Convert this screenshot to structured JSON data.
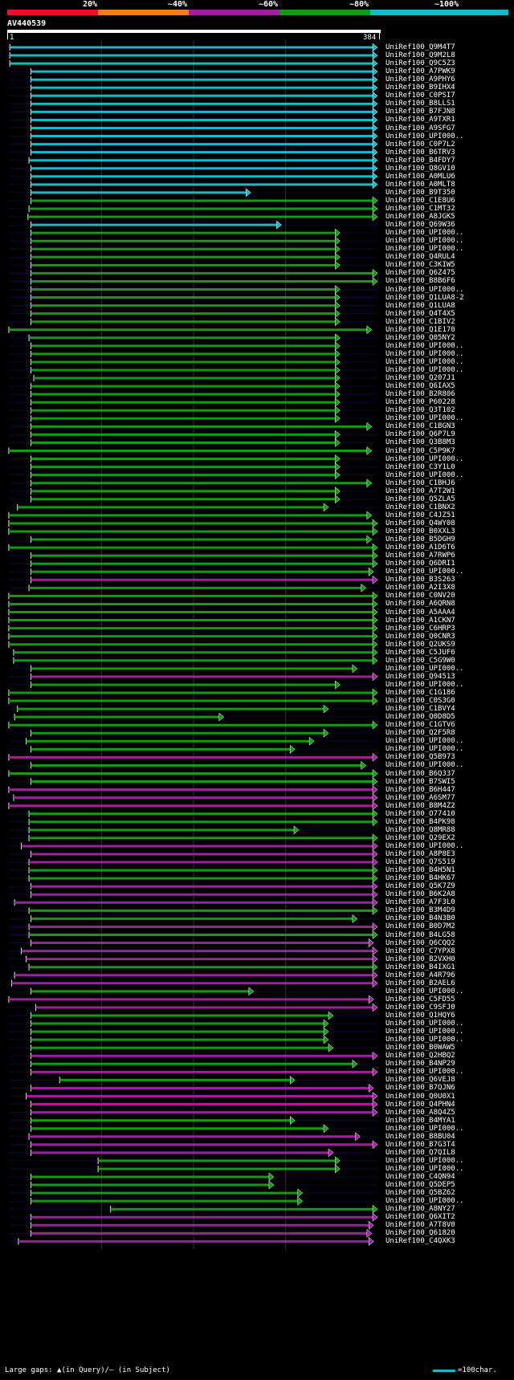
{
  "legend": {
    "labels": [
      "20%",
      "~40%",
      "~60%",
      "~80%",
      "~100%"
    ],
    "colors": [
      "#e8112d",
      "#f07d1e",
      "#a01f9c",
      "#119c11",
      "#19b8c8"
    ]
  },
  "query": {
    "title": "AV440539",
    "start": "1",
    "end": "384"
  },
  "footer": {
    "left": "Large gaps: ▲(in Query)/– (in Subject)",
    "right": "=100char."
  },
  "chart_data": {
    "type": "alignment",
    "query_length": 384,
    "color_key": {
      "cyan": "~100%",
      "green": "~80%",
      "magenta": "~60%",
      "orange": "~40%",
      "red": "20%"
    },
    "hits": [
      {
        "name": "UniRef100_Q9M4T7",
        "start": 1,
        "end": 384,
        "color": "cyan"
      },
      {
        "name": "UniRef100_Q9M2L8",
        "start": 1,
        "end": 384,
        "color": "cyan"
      },
      {
        "name": "UniRef100_Q9C5Z3",
        "start": 1,
        "end": 384,
        "color": "cyan"
      },
      {
        "name": "UniRef100_A7PWK9",
        "start": 23,
        "end": 384,
        "color": "cyan"
      },
      {
        "name": "UniRef100_A9PHY6",
        "start": 23,
        "end": 384,
        "color": "cyan"
      },
      {
        "name": "UniRef100_B9IHX4",
        "start": 23,
        "end": 384,
        "color": "cyan"
      },
      {
        "name": "UniRef100_C0PSI7",
        "start": 23,
        "end": 384,
        "color": "cyan"
      },
      {
        "name": "UniRef100_B8LLS1",
        "start": 23,
        "end": 384,
        "color": "cyan"
      },
      {
        "name": "UniRef100_B7FJN8",
        "start": 23,
        "end": 384,
        "color": "cyan"
      },
      {
        "name": "UniRef100_A9TXR1",
        "start": 23,
        "end": 384,
        "color": "cyan"
      },
      {
        "name": "UniRef100_A9SFG7",
        "start": 23,
        "end": 384,
        "color": "cyan"
      },
      {
        "name": "UniRef100_UPI000..",
        "start": 23,
        "end": 384,
        "color": "cyan"
      },
      {
        "name": "UniRef100_C0P7L2",
        "start": 23,
        "end": 384,
        "color": "cyan"
      },
      {
        "name": "UniRef100_B6TRV3",
        "start": 23,
        "end": 384,
        "color": "cyan"
      },
      {
        "name": "UniRef100_B4FDY7",
        "start": 21,
        "end": 384,
        "color": "cyan"
      },
      {
        "name": "UniRef100_Q8GV10",
        "start": 23,
        "end": 384,
        "color": "cyan"
      },
      {
        "name": "UniRef100_A0MLU6",
        "start": 23,
        "end": 384,
        "color": "cyan"
      },
      {
        "name": "UniRef100_A0MLT8",
        "start": 23,
        "end": 384,
        "color": "cyan"
      },
      {
        "name": "UniRef100_B9T350",
        "start": 23,
        "end": 252,
        "color": "cyan"
      },
      {
        "name": "UniRef100_C1E8U6",
        "start": 23,
        "end": 384,
        "color": "green"
      },
      {
        "name": "UniRef100_C1MT32",
        "start": 21,
        "end": 384,
        "color": "green"
      },
      {
        "name": "UniRef100_A8JGK5",
        "start": 20,
        "end": 384,
        "color": "green"
      },
      {
        "name": "UniRef100_Q69W36",
        "start": 23,
        "end": 284,
        "color": "cyan"
      },
      {
        "name": "UniRef100_UPI000..",
        "start": 23,
        "end": 345,
        "color": "green"
      },
      {
        "name": "UniRef100_UPI000..",
        "start": 23,
        "end": 345,
        "color": "green"
      },
      {
        "name": "UniRef100_UPI000..",
        "start": 23,
        "end": 345,
        "color": "green"
      },
      {
        "name": "UniRef100_Q4RUL4",
        "start": 23,
        "end": 345,
        "color": "green"
      },
      {
        "name": "UniRef100_C3KIW5",
        "start": 23,
        "end": 345,
        "color": "green"
      },
      {
        "name": "UniRef100_Q6Z475",
        "start": 23,
        "end": 384,
        "color": "green"
      },
      {
        "name": "UniRef100_B8B6F6",
        "start": 23,
        "end": 384,
        "color": "green"
      },
      {
        "name": "UniRef100_UPI000..",
        "start": 23,
        "end": 345,
        "color": "green"
      },
      {
        "name": "UniRef100_Q1LUA8-2",
        "start": 23,
        "end": 345,
        "color": "green"
      },
      {
        "name": "UniRef100_Q1LUA8",
        "start": 23,
        "end": 345,
        "color": "green"
      },
      {
        "name": "UniRef100_Q4T4X5",
        "start": 23,
        "end": 345,
        "color": "green"
      },
      {
        "name": "UniRef100_C1BIV2",
        "start": 23,
        "end": 345,
        "color": "green"
      },
      {
        "name": "UniRef100_Q1E170",
        "start": 0,
        "end": 378,
        "color": "green"
      },
      {
        "name": "UniRef100_Q05NY2",
        "start": 21,
        "end": 345,
        "color": "green"
      },
      {
        "name": "UniRef100_UPI000..",
        "start": 23,
        "end": 345,
        "color": "green"
      },
      {
        "name": "UniRef100_UPI000..",
        "start": 23,
        "end": 345,
        "color": "green"
      },
      {
        "name": "UniRef100_UPI000..",
        "start": 23,
        "end": 345,
        "color": "green"
      },
      {
        "name": "UniRef100_UPI000..",
        "start": 23,
        "end": 345,
        "color": "green"
      },
      {
        "name": "UniRef100_Q207J1",
        "start": 26,
        "end": 345,
        "color": "green"
      },
      {
        "name": "UniRef100_Q6IAX5",
        "start": 23,
        "end": 345,
        "color": "green"
      },
      {
        "name": "UniRef100_B2R806",
        "start": 23,
        "end": 345,
        "color": "green"
      },
      {
        "name": "UniRef100_P60228",
        "start": 23,
        "end": 345,
        "color": "green"
      },
      {
        "name": "UniRef100_Q3T102",
        "start": 23,
        "end": 345,
        "color": "green"
      },
      {
        "name": "UniRef100_UPI000..",
        "start": 23,
        "end": 345,
        "color": "green"
      },
      {
        "name": "UniRef100_C1BGN3",
        "start": 23,
        "end": 378,
        "color": "green"
      },
      {
        "name": "UniRef100_Q6P7L9",
        "start": 23,
        "end": 345,
        "color": "green"
      },
      {
        "name": "UniRef100_Q3B8M3",
        "start": 23,
        "end": 345,
        "color": "green"
      },
      {
        "name": "UniRef100_C5P9K7",
        "start": 0,
        "end": 378,
        "color": "green"
      },
      {
        "name": "UniRef100_UPI000..",
        "start": 23,
        "end": 345,
        "color": "green"
      },
      {
        "name": "UniRef100_C3Y1L0",
        "start": 23,
        "end": 345,
        "color": "green"
      },
      {
        "name": "UniRef100_UPI000..",
        "start": 23,
        "end": 345,
        "color": "green"
      },
      {
        "name": "UniRef100_C1BHJ6",
        "start": 23,
        "end": 378,
        "color": "green"
      },
      {
        "name": "UniRef100_A7T2W1",
        "start": 23,
        "end": 345,
        "color": "green"
      },
      {
        "name": "UniRef100_Q5ZLA5",
        "start": 23,
        "end": 345,
        "color": "green"
      },
      {
        "name": "UniRef100_C1BNX2",
        "start": 9,
        "end": 333,
        "color": "green"
      },
      {
        "name": "UniRef100_C4JZ51",
        "start": 0,
        "end": 378,
        "color": "green"
      },
      {
        "name": "UniRef100_Q4WY08",
        "start": 0,
        "end": 384,
        "color": "green"
      },
      {
        "name": "UniRef100_B0XXL3",
        "start": 0,
        "end": 384,
        "color": "green"
      },
      {
        "name": "UniRef100_B5DGH9",
        "start": 23,
        "end": 378,
        "color": "green"
      },
      {
        "name": "UniRef100_A1D6T6",
        "start": 0,
        "end": 384,
        "color": "green"
      },
      {
        "name": "UniRef100_A7RWP6",
        "start": 23,
        "end": 384,
        "color": "green"
      },
      {
        "name": "UniRef100_Q6DRI1",
        "start": 23,
        "end": 384,
        "color": "green"
      },
      {
        "name": "UniRef100_UPI000..",
        "start": 23,
        "end": 380,
        "color": "green"
      },
      {
        "name": "UniRef100_B3S263",
        "start": 23,
        "end": 384,
        "color": "magenta"
      },
      {
        "name": "UniRef100_A2I3X8",
        "start": 21,
        "end": 372,
        "color": "green"
      },
      {
        "name": "UniRef100_C0NV20",
        "start": 0,
        "end": 384,
        "color": "green"
      },
      {
        "name": "UniRef100_A6QRN8",
        "start": 0,
        "end": 384,
        "color": "green"
      },
      {
        "name": "UniRef100_A5AAA4",
        "start": 0,
        "end": 384,
        "color": "green"
      },
      {
        "name": "UniRef100_A1CKN7",
        "start": 0,
        "end": 384,
        "color": "green"
      },
      {
        "name": "UniRef100_C6HRP3",
        "start": 0,
        "end": 384,
        "color": "green"
      },
      {
        "name": "UniRef100_Q0CNR3",
        "start": 0,
        "end": 384,
        "color": "green"
      },
      {
        "name": "UniRef100_Q2UKS9",
        "start": 0,
        "end": 384,
        "color": "green"
      },
      {
        "name": "UniRef100_C5JUF6",
        "start": 5,
        "end": 384,
        "color": "green"
      },
      {
        "name": "UniRef100_C5G9W0",
        "start": 5,
        "end": 384,
        "color": "green"
      },
      {
        "name": "UniRef100_UPI000..",
        "start": 23,
        "end": 363,
        "color": "green"
      },
      {
        "name": "UniRef100_Q94513",
        "start": 23,
        "end": 384,
        "color": "magenta"
      },
      {
        "name": "UniRef100_UPI000..",
        "start": 23,
        "end": 345,
        "color": "green"
      },
      {
        "name": "UniRef100_C1G186",
        "start": 0,
        "end": 384,
        "color": "green"
      },
      {
        "name": "UniRef100_C0S3G0",
        "start": 0,
        "end": 384,
        "color": "green"
      },
      {
        "name": "UniRef100_C1BVY4",
        "start": 9,
        "end": 333,
        "color": "green"
      },
      {
        "name": "UniRef100_Q0D8D5",
        "start": 6,
        "end": 224,
        "color": "green"
      },
      {
        "name": "UniRef100_C1GTV6",
        "start": 0,
        "end": 384,
        "color": "green"
      },
      {
        "name": "UniRef100_Q2F5R8",
        "start": 23,
        "end": 333,
        "color": "green"
      },
      {
        "name": "UniRef100_UPI000..",
        "start": 18,
        "end": 318,
        "color": "green"
      },
      {
        "name": "UniRef100_UPI000..",
        "start": 23,
        "end": 298,
        "color": "green"
      },
      {
        "name": "UniRef100_Q5B973",
        "start": 0,
        "end": 384,
        "color": "magenta"
      },
      {
        "name": "UniRef100_UPI000..",
        "start": 23,
        "end": 372,
        "color": "green"
      },
      {
        "name": "UniRef100_B6Q337",
        "start": 0,
        "end": 384,
        "color": "green"
      },
      {
        "name": "UniRef100_B7SWI5",
        "start": 23,
        "end": 384,
        "color": "green"
      },
      {
        "name": "UniRef100_B6H447",
        "start": 0,
        "end": 384,
        "color": "magenta"
      },
      {
        "name": "UniRef100_A6SM77",
        "start": 5,
        "end": 384,
        "color": "magenta"
      },
      {
        "name": "UniRef100_B8M4Z2",
        "start": 0,
        "end": 384,
        "color": "magenta"
      },
      {
        "name": "UniRef100_O77410",
        "start": 21,
        "end": 384,
        "color": "green"
      },
      {
        "name": "UniRef100_B4PK98",
        "start": 21,
        "end": 384,
        "color": "green"
      },
      {
        "name": "UniRef100_Q8MR88",
        "start": 21,
        "end": 302,
        "color": "green"
      },
      {
        "name": "UniRef100_Q29EX2",
        "start": 21,
        "end": 384,
        "color": "green"
      },
      {
        "name": "UniRef100_UPI000..",
        "start": 13,
        "end": 384,
        "color": "magenta"
      },
      {
        "name": "UniRef100_A8P8E3",
        "start": 23,
        "end": 384,
        "color": "magenta"
      },
      {
        "name": "UniRef100_Q7S519",
        "start": 21,
        "end": 384,
        "color": "magenta"
      },
      {
        "name": "UniRef100_B4H5N1",
        "start": 21,
        "end": 384,
        "color": "green"
      },
      {
        "name": "UniRef100_B4HK67",
        "start": 21,
        "end": 384,
        "color": "green"
      },
      {
        "name": "UniRef100_Q5K7Z9",
        "start": 23,
        "end": 384,
        "color": "magenta"
      },
      {
        "name": "UniRef100_B6K2A8",
        "start": 23,
        "end": 384,
        "color": "magenta"
      },
      {
        "name": "UniRef100_A7F3L0",
        "start": 6,
        "end": 384,
        "color": "magenta"
      },
      {
        "name": "UniRef100_B3M4D9",
        "start": 21,
        "end": 384,
        "color": "green"
      },
      {
        "name": "UniRef100_B4N3B0",
        "start": 23,
        "end": 363,
        "color": "green"
      },
      {
        "name": "UniRef100_B0D7M2",
        "start": 21,
        "end": 384,
        "color": "magenta"
      },
      {
        "name": "UniRef100_B4LG58",
        "start": 21,
        "end": 384,
        "color": "green"
      },
      {
        "name": "UniRef100_Q6CQQ2",
        "start": 23,
        "end": 380,
        "color": "magenta"
      },
      {
        "name": "UniRef100_C7YPX8",
        "start": 13,
        "end": 384,
        "color": "magenta"
      },
      {
        "name": "UniRef100_B2VXH0",
        "start": 18,
        "end": 384,
        "color": "magenta"
      },
      {
        "name": "UniRef100_B4IXG1",
        "start": 21,
        "end": 384,
        "color": "green"
      },
      {
        "name": "UniRef100_A4R796",
        "start": 6,
        "end": 384,
        "color": "magenta"
      },
      {
        "name": "UniRef100_B2AEL6",
        "start": 3,
        "end": 384,
        "color": "magenta"
      },
      {
        "name": "UniRef100_UPI000..",
        "start": 23,
        "end": 255,
        "color": "green"
      },
      {
        "name": "UniRef100_C5FD55",
        "start": 0,
        "end": 380,
        "color": "magenta"
      },
      {
        "name": "UniRef100_C9SFJ0",
        "start": 28,
        "end": 384,
        "color": "magenta"
      },
      {
        "name": "UniRef100_Q1HQY6",
        "start": 23,
        "end": 338,
        "color": "green"
      },
      {
        "name": "UniRef100_UPI000..",
        "start": 23,
        "end": 333,
        "color": "green"
      },
      {
        "name": "UniRef100_UPI000..",
        "start": 23,
        "end": 333,
        "color": "green"
      },
      {
        "name": "UniRef100_UPI000..",
        "start": 23,
        "end": 333,
        "color": "green"
      },
      {
        "name": "UniRef100_B0WAW5",
        "start": 23,
        "end": 338,
        "color": "green"
      },
      {
        "name": "UniRef100_Q2HBQ2",
        "start": 23,
        "end": 384,
        "color": "magenta"
      },
      {
        "name": "UniRef100_B4NP29",
        "start": 23,
        "end": 363,
        "color": "green"
      },
      {
        "name": "UniRef100_UPI000..",
        "start": 23,
        "end": 384,
        "color": "magenta"
      },
      {
        "name": "UniRef100_Q6VEJ8",
        "start": 53,
        "end": 298,
        "color": "green"
      },
      {
        "name": "UniRef100_B7QJN6",
        "start": 23,
        "end": 380,
        "color": "magenta"
      },
      {
        "name": "UniRef100_Q0U0X1",
        "start": 18,
        "end": 384,
        "color": "magenta"
      },
      {
        "name": "UniRef100_Q4PHN4",
        "start": 23,
        "end": 384,
        "color": "magenta"
      },
      {
        "name": "UniRef100_A8Q4Z5",
        "start": 23,
        "end": 384,
        "color": "magenta"
      },
      {
        "name": "UniRef100_B4MYA1",
        "start": 23,
        "end": 298,
        "color": "green"
      },
      {
        "name": "UniRef100_UPI000..",
        "start": 23,
        "end": 333,
        "color": "green"
      },
      {
        "name": "UniRef100_B8BU04",
        "start": 21,
        "end": 366,
        "color": "magenta"
      },
      {
        "name": "UniRef100_B7G3T4",
        "start": 23,
        "end": 384,
        "color": "magenta"
      },
      {
        "name": "UniRef100_Q7QIL8",
        "start": 23,
        "end": 338,
        "color": "magenta"
      },
      {
        "name": "UniRef100_UPI000..",
        "start": 93,
        "end": 345,
        "color": "green"
      },
      {
        "name": "UniRef100_UPI000..",
        "start": 93,
        "end": 345,
        "color": "green"
      },
      {
        "name": "UniRef100_C4QN94",
        "start": 23,
        "end": 276,
        "color": "green"
      },
      {
        "name": "UniRef100_Q5DEP5",
        "start": 23,
        "end": 276,
        "color": "green"
      },
      {
        "name": "UniRef100_Q5BZ62",
        "start": 23,
        "end": 306,
        "color": "green"
      },
      {
        "name": "UniRef100_UPI000..",
        "start": 23,
        "end": 306,
        "color": "green"
      },
      {
        "name": "UniRef100_A8NY27",
        "start": 106,
        "end": 384,
        "color": "green"
      },
      {
        "name": "UniRef100_Q6XIT2",
        "start": 23,
        "end": 384,
        "color": "magenta"
      },
      {
        "name": "UniRef100_A7T8V0",
        "start": 23,
        "end": 380,
        "color": "magenta"
      },
      {
        "name": "UniRef100_Q61820",
        "start": 23,
        "end": 378,
        "color": "magenta"
      },
      {
        "name": "UniRef100_C4QXK3",
        "start": 10,
        "end": 380,
        "color": "magenta"
      }
    ]
  }
}
